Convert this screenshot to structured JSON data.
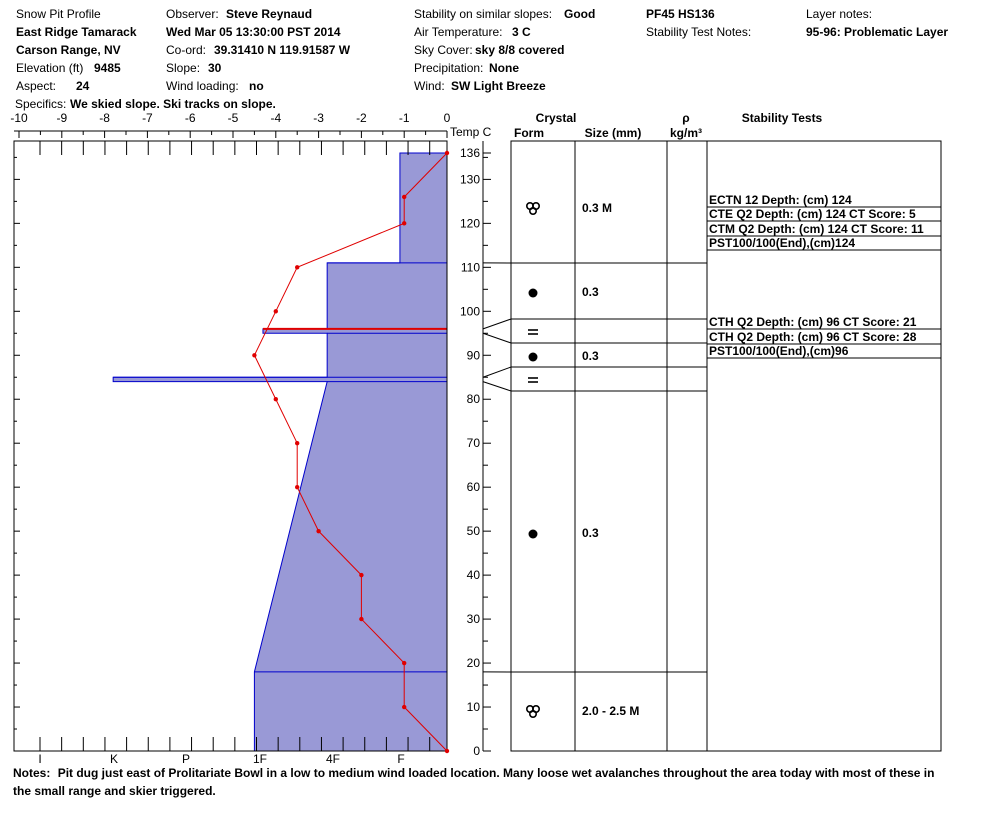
{
  "header": {
    "title": "Snow Pit Profile",
    "location": "East Ridge Tamarack",
    "region": "Carson Range, NV",
    "elevation_label": "Elevation (ft)",
    "elevation": "9485",
    "aspect_label": "Aspect:",
    "aspect": "24",
    "specifics_label": "Specifics:",
    "specifics": "We skied slope. Ski tracks on slope.",
    "observer_label": "Observer:",
    "observer": "Steve Reynaud",
    "datetime": "Wed Mar 05 13:30:00 PST 2014",
    "coord_label": "Co-ord:",
    "coord": "39.31410 N 119.91587 W",
    "slope_label": "Slope:",
    "slope": "30",
    "wind_loading_label": "Wind loading:",
    "wind_loading": "no",
    "stability_label": "Stability on similar slopes:",
    "stability": "Good",
    "air_temp_label": "Air Temperature:",
    "air_temp": "3 C",
    "sky_label": "Sky Cover:",
    "sky": "sky 8/8 covered",
    "precip_label": "Precipitation:",
    "precip": "None",
    "wind_label": "Wind:",
    "wind": "SW Light Breeze",
    "pf_hs": "PF45 HS136",
    "stability_notes_label": "Stability Test Notes:",
    "layer_notes_label": "Layer notes:",
    "layer_notes": "95-96: Problematic Layer"
  },
  "columns": {
    "temp": "Temp C",
    "crystal": "Crystal",
    "form": "Form",
    "size": "Size (mm)",
    "rho": "ρ",
    "density_unit": "kg/m³",
    "stability_tests": "Stability Tests"
  },
  "notes": {
    "label": "Notes:",
    "text": "Pit dug just east of Prolitariate Bowl in a low to medium wind loaded location.  Many loose wet avalanches throughout the area today with most of these in the small range and skier triggered."
  },
  "chart_data": {
    "type": "snow-profile",
    "temp_axis": {
      "range": [
        -10,
        0
      ],
      "ticks": [
        -10,
        -9,
        -8,
        -7,
        -6,
        -5,
        -4,
        -3,
        -2,
        -1,
        0
      ]
    },
    "hardness_axis": {
      "labels": [
        "I",
        "K",
        "P",
        "1F",
        "4F",
        "F"
      ]
    },
    "height_axis": {
      "range": [
        0,
        136
      ],
      "ticks": [
        0,
        10,
        20,
        30,
        40,
        50,
        60,
        70,
        80,
        90,
        100,
        110,
        120,
        130,
        136
      ]
    },
    "temperature_profile": {
      "height_cm": [
        136,
        126,
        120,
        110,
        100,
        90,
        80,
        70,
        60,
        50,
        40,
        30,
        20,
        10,
        0
      ],
      "temp_c": [
        0,
        -1,
        -1,
        -3.5,
        -4,
        -4.5,
        -4,
        -3.5,
        -3.5,
        -3,
        -2,
        -2,
        -1,
        -1,
        0
      ]
    },
    "hardness_profile": [
      {
        "top": 136,
        "bottom": 111,
        "left_temp": -1.1
      },
      {
        "top": 111,
        "bottom": 96,
        "left_temp": -2.8
      },
      {
        "top": 96,
        "bottom": 95,
        "left_temp": -4.3
      },
      {
        "top": 95,
        "bottom": 85,
        "left_temp": -2.8
      },
      {
        "top": 85,
        "bottom": 84,
        "left_temp": -7.8
      },
      {
        "top": 84,
        "bottom": 18,
        "left_temp_top": -2.8,
        "left_temp_bottom": -4.5
      },
      {
        "top": 18,
        "bottom": 0,
        "left_temp": -4.5
      }
    ],
    "layer_boundaries_cm": [
      111,
      96,
      95,
      85,
      84,
      18
    ],
    "problem_layer_cm": 96,
    "crystal_layers": [
      {
        "height_cm": 123,
        "form": "rounding-faceted",
        "size": "0.3 M"
      },
      {
        "height_cm": 104,
        "form": "rounded",
        "size": "0.3"
      },
      {
        "height_cm": 95,
        "form": "surface-hoar",
        "size": ""
      },
      {
        "height_cm": 90,
        "form": "rounded",
        "size": "0.3"
      },
      {
        "height_cm": 84,
        "form": "surface-hoar",
        "size": ""
      },
      {
        "height_cm": 50,
        "form": "rounded",
        "size": "0.3"
      },
      {
        "height_cm": 10,
        "form": "rounding-faceted",
        "size": "2.0 - 2.5 M"
      }
    ],
    "stability_tests": [
      {
        "text": "ECTN 12   Depth: (cm) 124"
      },
      {
        "text": "CTE Q2 Depth: (cm) 124 CT Score: 5"
      },
      {
        "text": "CTM Q2 Depth: (cm) 124 CT Score: 11"
      },
      {
        "text": "PST100/100(End),(cm)124"
      },
      {
        "text": "CTH Q2 Depth: (cm) 96 CT Score: 21"
      },
      {
        "text": "CTH Q2 Depth: (cm) 96 CT Score: 28"
      },
      {
        "text": "PST100/100(End),(cm)96"
      }
    ],
    "colors": {
      "hardness_fill": "#9999d6",
      "hardness_stroke": "#0000cc",
      "temperature": "#e00000",
      "problem_layer": "#e00000"
    }
  }
}
